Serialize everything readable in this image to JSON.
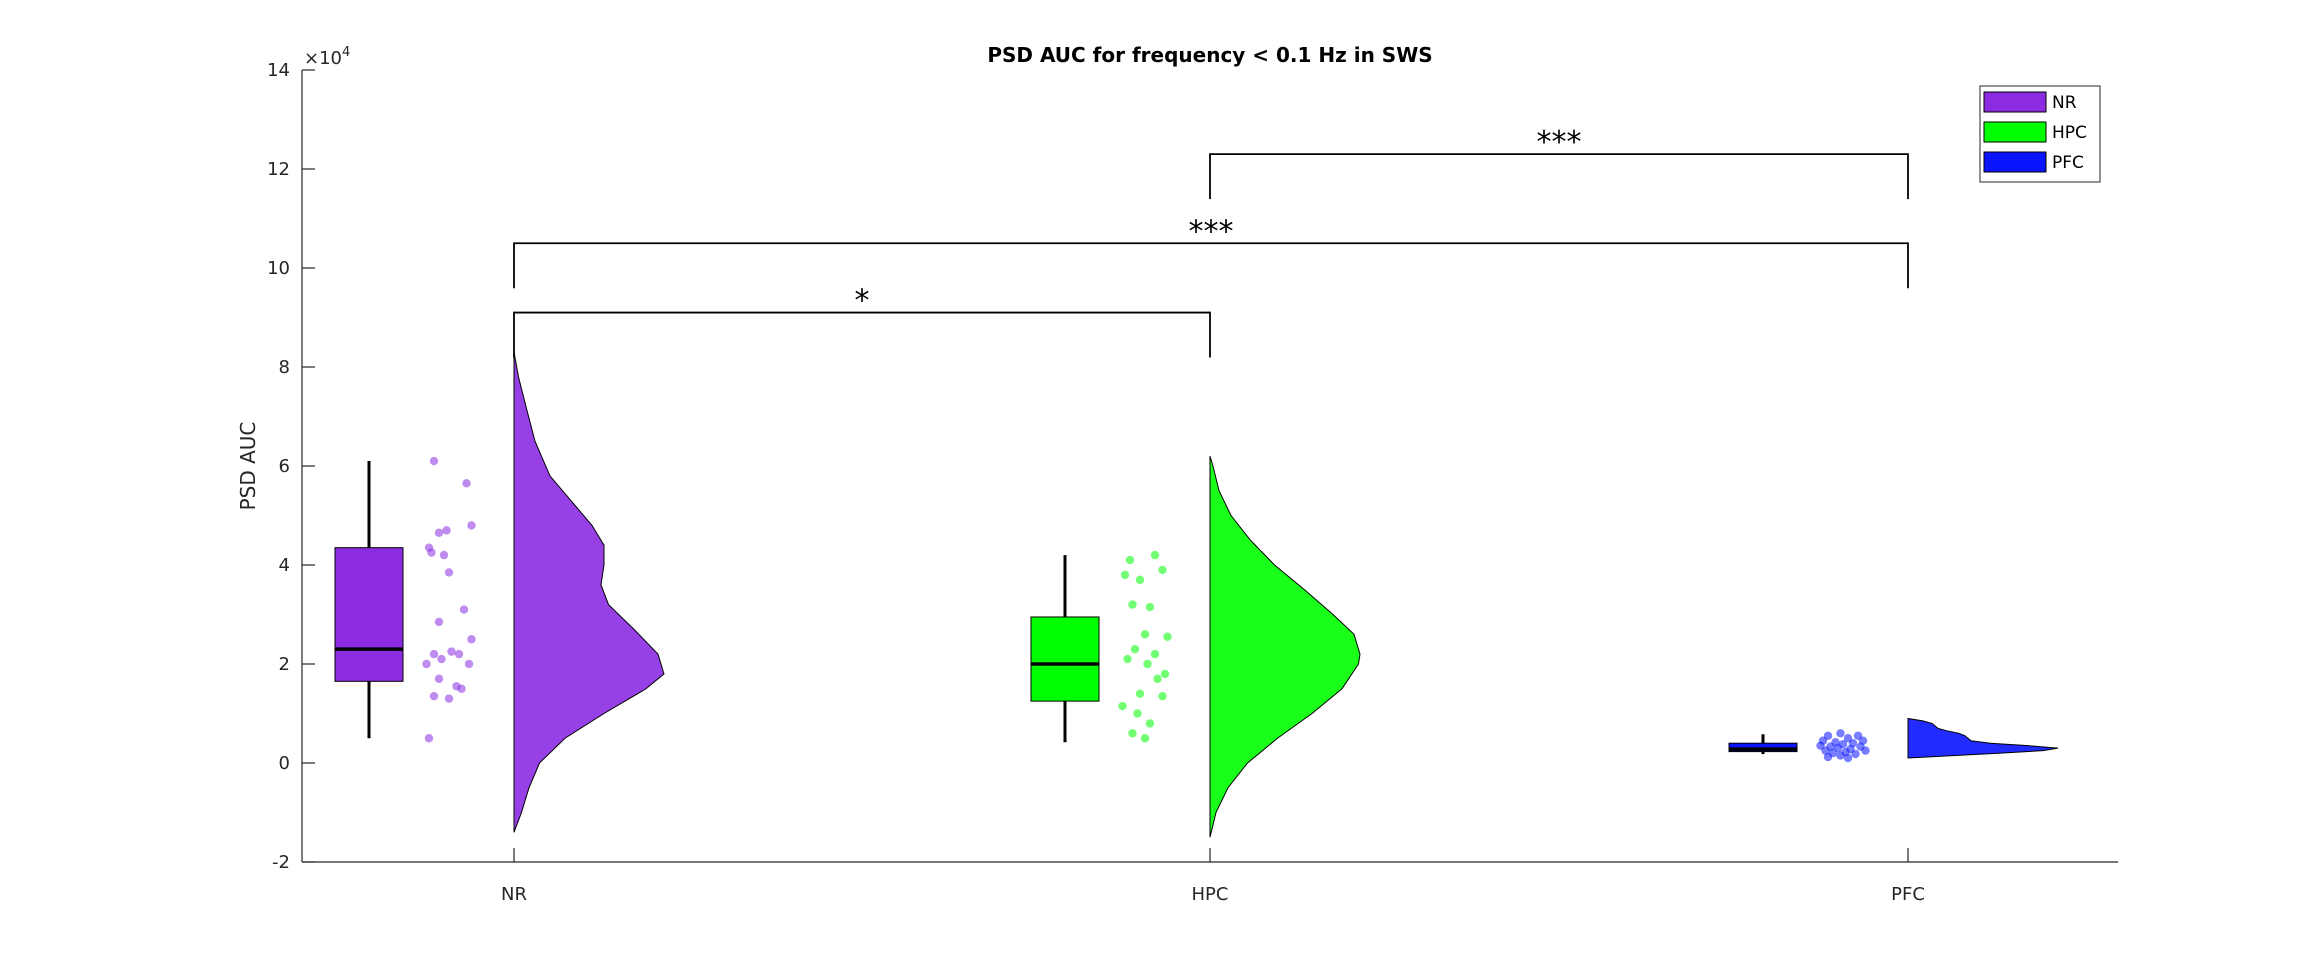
{
  "chart_data": {
    "type": "raincloud",
    "title": "PSD AUC for frequency < 0.1 Hz in SWS",
    "ylabel": "PSD AUC",
    "xlabel": "",
    "ylim": [
      -2,
      14
    ],
    "yticks": [
      -2,
      0,
      2,
      4,
      6,
      8,
      10,
      12,
      14
    ],
    "ytick_labels": [
      "-2",
      "0",
      "2",
      "4",
      "6",
      "8",
      "10",
      "12",
      "14"
    ],
    "y_exponent_label": "×10",
    "y_exponent_power": "4",
    "categories": [
      "NR",
      "HPC",
      "PFC"
    ],
    "legend": {
      "location": "top-right",
      "entries": [
        "NR",
        "HPC",
        "PFC"
      ]
    },
    "series": [
      {
        "name": "NR",
        "color": "#8B2BE2",
        "box": {
          "whisker_low": 0.5,
          "q1": 1.65,
          "median": 2.3,
          "q3": 4.35,
          "whisker_high": 6.1
        },
        "points": [
          [
            0.2,
            6.1
          ],
          [
            0.85,
            5.65
          ],
          [
            0.45,
            4.7
          ],
          [
            0.3,
            4.65
          ],
          [
            0.95,
            4.8
          ],
          [
            0.1,
            4.35
          ],
          [
            0.15,
            4.25
          ],
          [
            0.4,
            4.2
          ],
          [
            0.5,
            3.85
          ],
          [
            0.8,
            3.1
          ],
          [
            0.3,
            2.85
          ],
          [
            0.95,
            2.5
          ],
          [
            0.2,
            2.2
          ],
          [
            0.55,
            2.25
          ],
          [
            0.7,
            2.2
          ],
          [
            0.35,
            2.1
          ],
          [
            0.9,
            2.0
          ],
          [
            0.05,
            2.0
          ],
          [
            0.3,
            1.7
          ],
          [
            0.65,
            1.55
          ],
          [
            0.75,
            1.5
          ],
          [
            0.2,
            1.35
          ],
          [
            0.5,
            1.3
          ],
          [
            0.1,
            0.5
          ]
        ],
        "density": [
          [
            -1.4,
            0.0
          ],
          [
            -1.0,
            0.05
          ],
          [
            -0.5,
            0.1
          ],
          [
            0.0,
            0.17
          ],
          [
            0.5,
            0.34
          ],
          [
            1.0,
            0.6
          ],
          [
            1.5,
            0.88
          ],
          [
            1.8,
            1.0
          ],
          [
            2.2,
            0.96
          ],
          [
            2.7,
            0.8
          ],
          [
            3.2,
            0.63
          ],
          [
            3.6,
            0.58
          ],
          [
            4.0,
            0.6
          ],
          [
            4.4,
            0.6
          ],
          [
            4.8,
            0.52
          ],
          [
            5.3,
            0.38
          ],
          [
            5.8,
            0.24
          ],
          [
            6.5,
            0.14
          ],
          [
            7.2,
            0.08
          ],
          [
            7.8,
            0.03
          ],
          [
            8.3,
            0.0
          ]
        ]
      },
      {
        "name": "HPC",
        "color": "#00FF00",
        "box": {
          "whisker_low": 0.42,
          "q1": 1.25,
          "median": 2.0,
          "q3": 2.95,
          "whisker_high": 4.2
        },
        "points": [
          [
            0.7,
            4.2
          ],
          [
            0.2,
            4.1
          ],
          [
            0.85,
            3.9
          ],
          [
            0.1,
            3.8
          ],
          [
            0.4,
            3.7
          ],
          [
            0.25,
            3.2
          ],
          [
            0.6,
            3.15
          ],
          [
            0.95,
            2.55
          ],
          [
            0.5,
            2.6
          ],
          [
            0.3,
            2.3
          ],
          [
            0.7,
            2.2
          ],
          [
            0.15,
            2.1
          ],
          [
            0.55,
            2.0
          ],
          [
            0.9,
            1.8
          ],
          [
            0.75,
            1.7
          ],
          [
            0.4,
            1.4
          ],
          [
            0.85,
            1.35
          ],
          [
            0.05,
            1.15
          ],
          [
            0.35,
            1.0
          ],
          [
            0.6,
            0.8
          ],
          [
            0.25,
            0.6
          ],
          [
            0.5,
            0.5
          ]
        ],
        "density": [
          [
            -1.5,
            0.0
          ],
          [
            -1.0,
            0.04
          ],
          [
            -0.5,
            0.12
          ],
          [
            0.0,
            0.25
          ],
          [
            0.5,
            0.45
          ],
          [
            1.0,
            0.68
          ],
          [
            1.5,
            0.88
          ],
          [
            2.0,
            0.99
          ],
          [
            2.2,
            1.0
          ],
          [
            2.6,
            0.96
          ],
          [
            3.0,
            0.82
          ],
          [
            3.5,
            0.63
          ],
          [
            4.0,
            0.43
          ],
          [
            4.5,
            0.27
          ],
          [
            5.0,
            0.14
          ],
          [
            5.5,
            0.06
          ],
          [
            6.0,
            0.02
          ],
          [
            6.2,
            0.0
          ]
        ]
      },
      {
        "name": "PFC",
        "color": "#0A14FF",
        "box": {
          "whisker_low": 0.18,
          "q1": 0.23,
          "median": 0.28,
          "q3": 0.4,
          "whisker_high": 0.58
        },
        "points": [
          [
            0.45,
            0.6
          ],
          [
            0.2,
            0.55
          ],
          [
            0.8,
            0.55
          ],
          [
            0.6,
            0.5
          ],
          [
            0.1,
            0.45
          ],
          [
            0.9,
            0.45
          ],
          [
            0.35,
            0.42
          ],
          [
            0.7,
            0.4
          ],
          [
            0.5,
            0.38
          ],
          [
            0.05,
            0.35
          ],
          [
            0.25,
            0.33
          ],
          [
            0.85,
            0.33
          ],
          [
            0.4,
            0.3
          ],
          [
            0.65,
            0.28
          ],
          [
            0.15,
            0.25
          ],
          [
            0.95,
            0.25
          ],
          [
            0.55,
            0.22
          ],
          [
            0.3,
            0.2
          ],
          [
            0.75,
            0.18
          ],
          [
            0.45,
            0.15
          ],
          [
            0.2,
            0.12
          ],
          [
            0.6,
            0.1
          ]
        ],
        "density": [
          [
            0.1,
            0.0
          ],
          [
            0.15,
            0.3
          ],
          [
            0.2,
            0.62
          ],
          [
            0.25,
            0.9
          ],
          [
            0.3,
            1.0
          ],
          [
            0.35,
            0.8
          ],
          [
            0.4,
            0.55
          ],
          [
            0.45,
            0.42
          ],
          [
            0.5,
            0.4
          ],
          [
            0.55,
            0.38
          ],
          [
            0.6,
            0.34
          ],
          [
            0.65,
            0.26
          ],
          [
            0.7,
            0.2
          ],
          [
            0.75,
            0.18
          ],
          [
            0.8,
            0.16
          ],
          [
            0.85,
            0.1
          ],
          [
            0.9,
            0.0
          ]
        ]
      }
    ],
    "significance": [
      {
        "from": "NR",
        "to": "HPC",
        "label": "*",
        "y": 9.1
      },
      {
        "from": "NR",
        "to": "PFC",
        "label": "***",
        "y": 10.5
      },
      {
        "from": "HPC",
        "to": "PFC",
        "label": "***",
        "y": 12.3
      }
    ]
  }
}
